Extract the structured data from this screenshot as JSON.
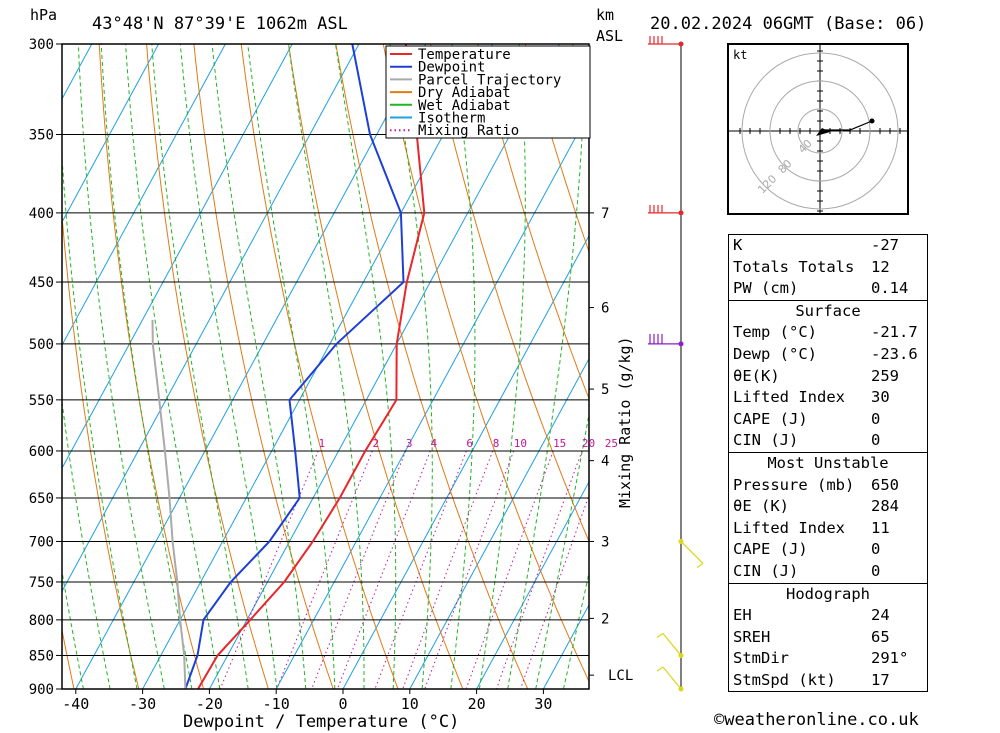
{
  "header": {
    "left_unit": "hPa",
    "location": "43°48'N 87°39'E 1062m ASL",
    "km_unit_top": "km",
    "km_unit_bottom": "ASL",
    "datetime": "20.02.2024 06GMT (Base: 06)"
  },
  "chart_data": {
    "type": "line",
    "subtype": "skew-T log-P diagram",
    "xlabel": "Dewpoint / Temperature (°C)",
    "ylabel_right": "Mixing Ratio (g/kg)",
    "pressure_ticks": [
      300,
      350,
      400,
      450,
      500,
      550,
      600,
      650,
      700,
      750,
      800,
      850,
      900
    ],
    "temperature_ticks": [
      -40,
      -30,
      -20,
      -10,
      0,
      10,
      20,
      30
    ],
    "pressure_range": [
      300,
      900
    ],
    "temperature_range_at_bottom": [
      -42,
      37
    ],
    "km_ticks": [
      {
        "label": "7",
        "pressure": 400
      },
      {
        "label": "6",
        "pressure": 470
      },
      {
        "label": "5",
        "pressure": 540
      },
      {
        "label": "4",
        "pressure": 610
      },
      {
        "label": "3",
        "pressure": 700
      },
      {
        "label": "2",
        "pressure": 798
      },
      {
        "label": "LCL",
        "pressure": 879
      }
    ],
    "mixing_ratio_labels": [
      "1",
      "2",
      "3",
      "4",
      "6",
      "8",
      "10",
      "15",
      "20",
      "25"
    ],
    "mixing_ratio_label_pressure": 592,
    "legend": {
      "placement": "top-center",
      "entries": [
        {
          "name": "Temperature",
          "color": "#e8262b"
        },
        {
          "name": "Dewpoint",
          "color": "#1d3fd6"
        },
        {
          "name": "Parcel Trajectory",
          "color": "#aaaaaa"
        },
        {
          "name": "Dry Adiabat",
          "color": "#e07a16"
        },
        {
          "name": "Wet Adiabat",
          "color": "#22b422"
        },
        {
          "name": "Isotherm",
          "color": "#1fa0e0"
        },
        {
          "name": "Mixing Ratio",
          "color": "#c0169a"
        }
      ]
    },
    "series": [
      {
        "name": "Temperature",
        "points": [
          [
            900,
            -21.7
          ],
          [
            850,
            -21.5
          ],
          [
            800,
            -19.5
          ],
          [
            750,
            -17.5
          ],
          [
            700,
            -16.5
          ],
          [
            650,
            -16
          ],
          [
            600,
            -16
          ],
          [
            550,
            -15.5
          ],
          [
            500,
            -20
          ],
          [
            450,
            -23.5
          ],
          [
            400,
            -26.5
          ],
          [
            350,
            -34
          ],
          [
            300,
            -43
          ]
        ]
      },
      {
        "name": "Dewpoint",
        "points": [
          [
            900,
            -23.6
          ],
          [
            850,
            -24.5
          ],
          [
            800,
            -26.5
          ],
          [
            750,
            -25.5
          ],
          [
            700,
            -23
          ],
          [
            650,
            -22
          ],
          [
            600,
            -26.5
          ],
          [
            550,
            -31.5
          ],
          [
            500,
            -29
          ],
          [
            450,
            -24
          ],
          [
            400,
            -30
          ],
          [
            350,
            -41
          ],
          [
            300,
            -51
          ]
        ]
      },
      {
        "name": "Parcel Trajectory",
        "points": [
          [
            900,
            -23.6
          ],
          [
            850,
            -26.5
          ],
          [
            800,
            -30
          ],
          [
            750,
            -33.5
          ],
          [
            700,
            -37.5
          ],
          [
            650,
            -41.5
          ],
          [
            600,
            -46
          ],
          [
            550,
            -51
          ],
          [
            500,
            -56.5
          ],
          [
            480,
            -58.5
          ]
        ]
      }
    ],
    "wind_barbs": [
      {
        "pressure": 300,
        "color": "#e8262b"
      },
      {
        "pressure": 400,
        "color": "#e8262b"
      },
      {
        "pressure": 500,
        "color": "#8b1ec8"
      },
      {
        "pressure": 700,
        "color": "#d8d818"
      },
      {
        "pressure": 850,
        "color": "#d8d818"
      },
      {
        "pressure": 900,
        "color": "#d8d818"
      }
    ]
  },
  "hodograph": {
    "unit": "kt",
    "ring_labels": [
      "40",
      "80",
      "120"
    ]
  },
  "indices": [
    {
      "title": "",
      "rows": [
        {
          "label": "K",
          "value": "-27"
        },
        {
          "label": "Totals Totals",
          "value": "12"
        },
        {
          "label": "PW (cm)",
          "value": "0.14"
        }
      ]
    },
    {
      "title": "Surface",
      "rows": [
        {
          "label": "Temp (°C)",
          "value": "-21.7"
        },
        {
          "label": "Dewp (°C)",
          "value": "-23.6"
        },
        {
          "label": "θE(K)",
          "value": "259"
        },
        {
          "label": "Lifted Index",
          "value": "30"
        },
        {
          "label": "CAPE (J)",
          "value": "0"
        },
        {
          "label": "CIN (J)",
          "value": "0"
        }
      ]
    },
    {
      "title": "Most Unstable",
      "rows": [
        {
          "label": "Pressure (mb)",
          "value": "650"
        },
        {
          "label": "θE (K)",
          "value": "284"
        },
        {
          "label": "Lifted Index",
          "value": "11"
        },
        {
          "label": "CAPE (J)",
          "value": "0"
        },
        {
          "label": "CIN (J)",
          "value": "0"
        }
      ]
    },
    {
      "title": "Hodograph",
      "rows": [
        {
          "label": "EH",
          "value": "24"
        },
        {
          "label": "SREH",
          "value": "65"
        },
        {
          "label": "StmDir",
          "value": "291°"
        },
        {
          "label": "StmSpd (kt)",
          "value": "17"
        }
      ]
    }
  ],
  "footer": {
    "copyright_symbol": "©",
    "site": "weatheronline.co.uk"
  }
}
